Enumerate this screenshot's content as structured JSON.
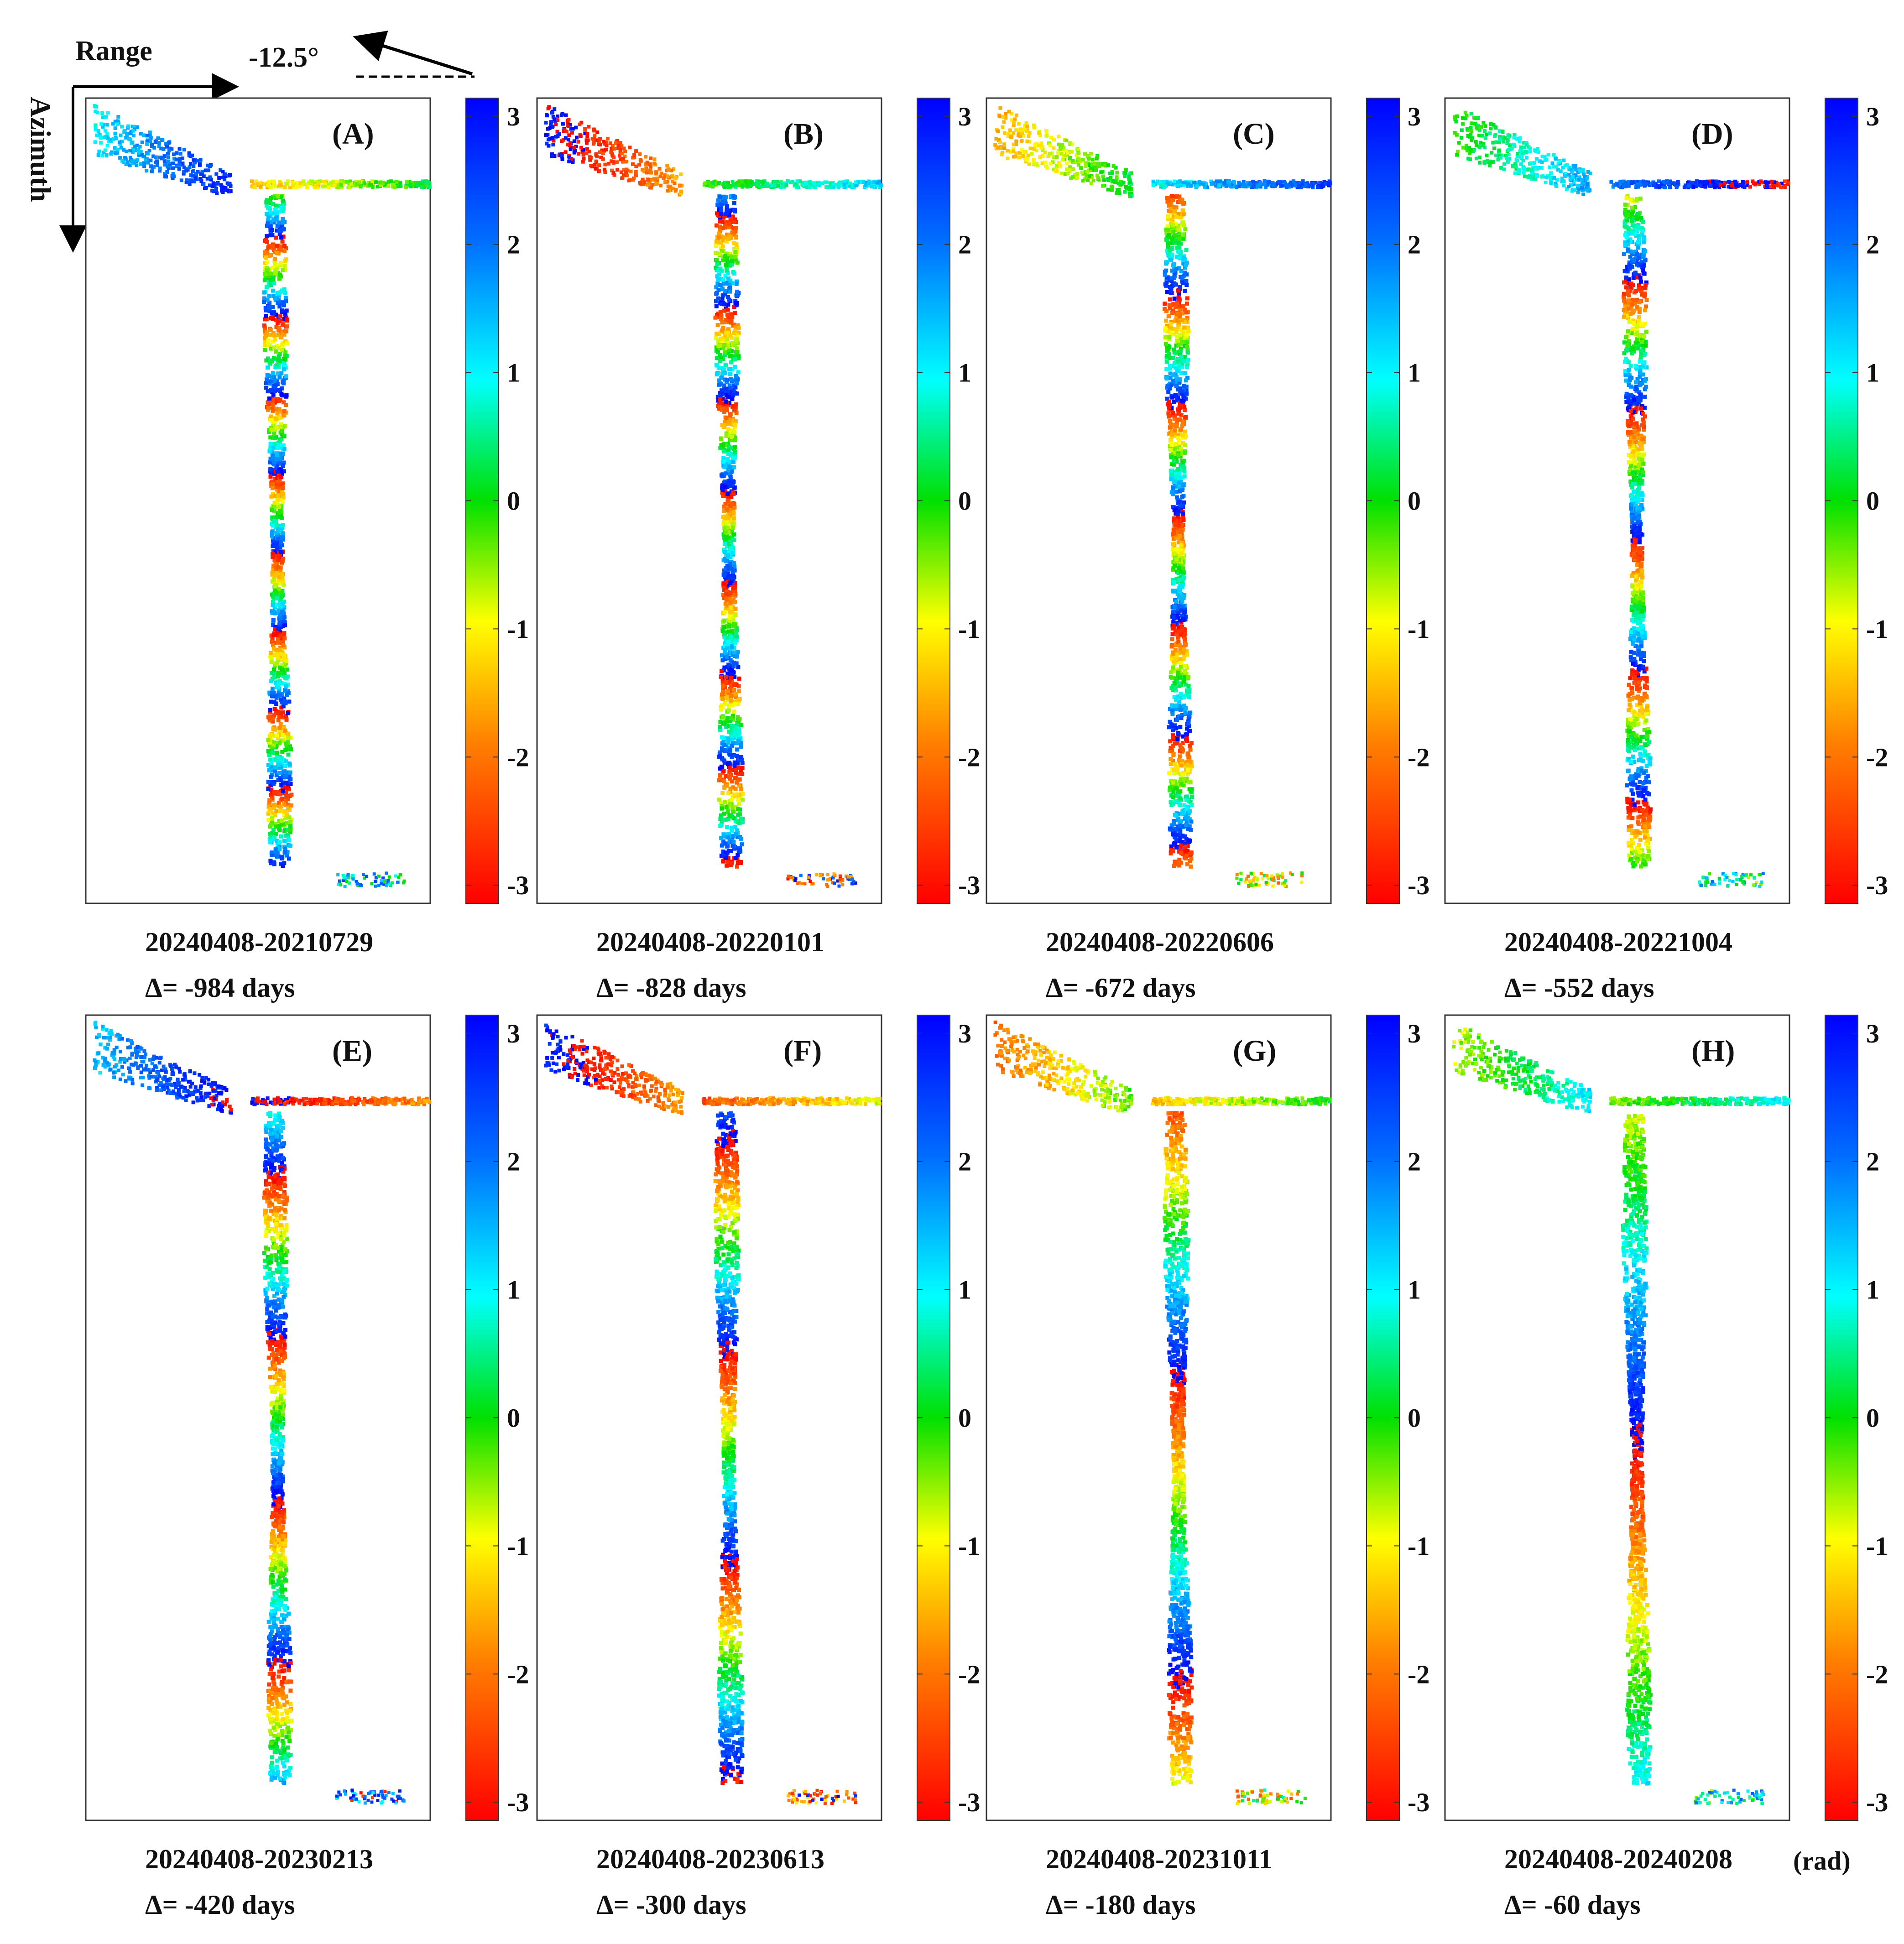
{
  "figure": {
    "range_label": "Range",
    "azimuth_label": "Azimuth",
    "angle_label": "-12.5°",
    "unit_label": "(rad)"
  },
  "chart_data": {
    "type": "scatter",
    "description_units": "interferometric phase",
    "colorbar": {
      "min": -3.14159,
      "max": 3.14159,
      "ticks": [
        3,
        2,
        1,
        0,
        -1,
        -2,
        -3
      ],
      "tick_labels": [
        "3",
        "2",
        "1",
        "0",
        "-1",
        "-2",
        "-3"
      ],
      "colormap": [
        "#ff0000",
        "#ff8000",
        "#ffff00",
        "#00e000",
        "#00ffff",
        "#0070ff",
        "#0000ff"
      ]
    },
    "panels": [
      {
        "id": "A",
        "label": "(A)",
        "pair": "20240408-20210729",
        "delta": "Δ= -984 days",
        "delta_days": -984
      },
      {
        "id": "B",
        "label": "(B)",
        "pair": "20240408-20220101",
        "delta": "Δ= -828 days",
        "delta_days": -828
      },
      {
        "id": "C",
        "label": "(C)",
        "pair": "20240408-20220606",
        "delta": "Δ= -672 days",
        "delta_days": -672
      },
      {
        "id": "D",
        "label": "(D)",
        "pair": "20240408-20221004",
        "delta": "Δ= -552 days",
        "delta_days": -552
      },
      {
        "id": "E",
        "label": "(E)",
        "pair": "20240408-20230213",
        "delta": "Δ= -420 days",
        "delta_days": -420
      },
      {
        "id": "F",
        "label": "(F)",
        "pair": "20240408-20230613",
        "delta": "Δ= -300 days",
        "delta_days": -300
      },
      {
        "id": "G",
        "label": "(G)",
        "pair": "20240408-20231011",
        "delta": "Δ= -180 days",
        "delta_days": -180
      },
      {
        "id": "H",
        "label": "(H)",
        "pair": "20240408-20240208",
        "delta": "Δ= -60 days",
        "delta_days": -60
      }
    ]
  }
}
